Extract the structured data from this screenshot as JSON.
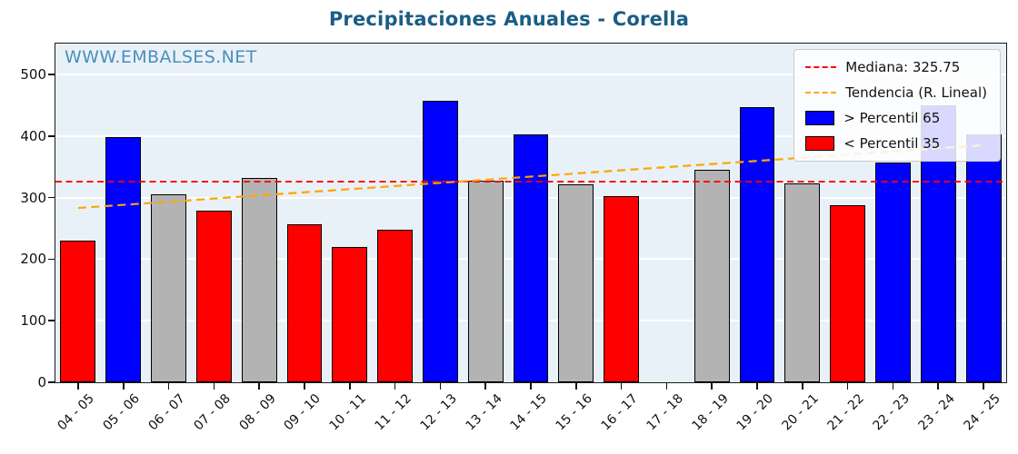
{
  "chart_data": {
    "type": "bar",
    "title": "Precipitaciones Anuales - Corella",
    "watermark": "WWW.EMBALSES.NET",
    "categories": [
      "04 - 05",
      "05 - 06",
      "06 - 07",
      "07 - 08",
      "08 - 09",
      "09 - 10",
      "10 - 11",
      "11 - 12",
      "12 - 13",
      "13 - 14",
      "14 - 15",
      "15 - 16",
      "16 - 17",
      "17 - 18",
      "18 - 19",
      "19 - 20",
      "20 - 21",
      "21 - 22",
      "22 - 23",
      "23 - 24",
      "24 - 25"
    ],
    "values": [
      230,
      398,
      305,
      278,
      332,
      256,
      219,
      247,
      457,
      327,
      403,
      322,
      303,
      null,
      345,
      447,
      323,
      287,
      357,
      450,
      402
    ],
    "bar_classes": [
      "red",
      "blue",
      "gray",
      "red",
      "gray",
      "red",
      "red",
      "red",
      "blue",
      "gray",
      "blue",
      "gray",
      "red",
      null,
      "gray",
      "blue",
      "gray",
      "red",
      "blue",
      "blue",
      "blue"
    ],
    "color_map": {
      "red": "#ff0000",
      "blue": "#0000ff",
      "gray": "#b3b3b3"
    },
    "median": 325.75,
    "median_color": "#ff0000",
    "trend": {
      "start": 283,
      "end": 385,
      "color": "#ffa500"
    },
    "ylim": [
      0,
      550
    ],
    "yticks": [
      0,
      100,
      200,
      300,
      400,
      500
    ],
    "xlabel": "",
    "ylabel": "",
    "grid": "horizontal",
    "legend_position": "top-right",
    "legend": [
      {
        "label": "Mediana: 325.75",
        "type": "line",
        "color": "#ff0000"
      },
      {
        "label": "Tendencia (R. Lineal)",
        "type": "line",
        "color": "#ffa500"
      },
      {
        "label": "> Percentil 65",
        "type": "patch",
        "color": "#0000ff"
      },
      {
        "label": "< Percentil 35",
        "type": "patch",
        "color": "#ff0000"
      }
    ]
  }
}
